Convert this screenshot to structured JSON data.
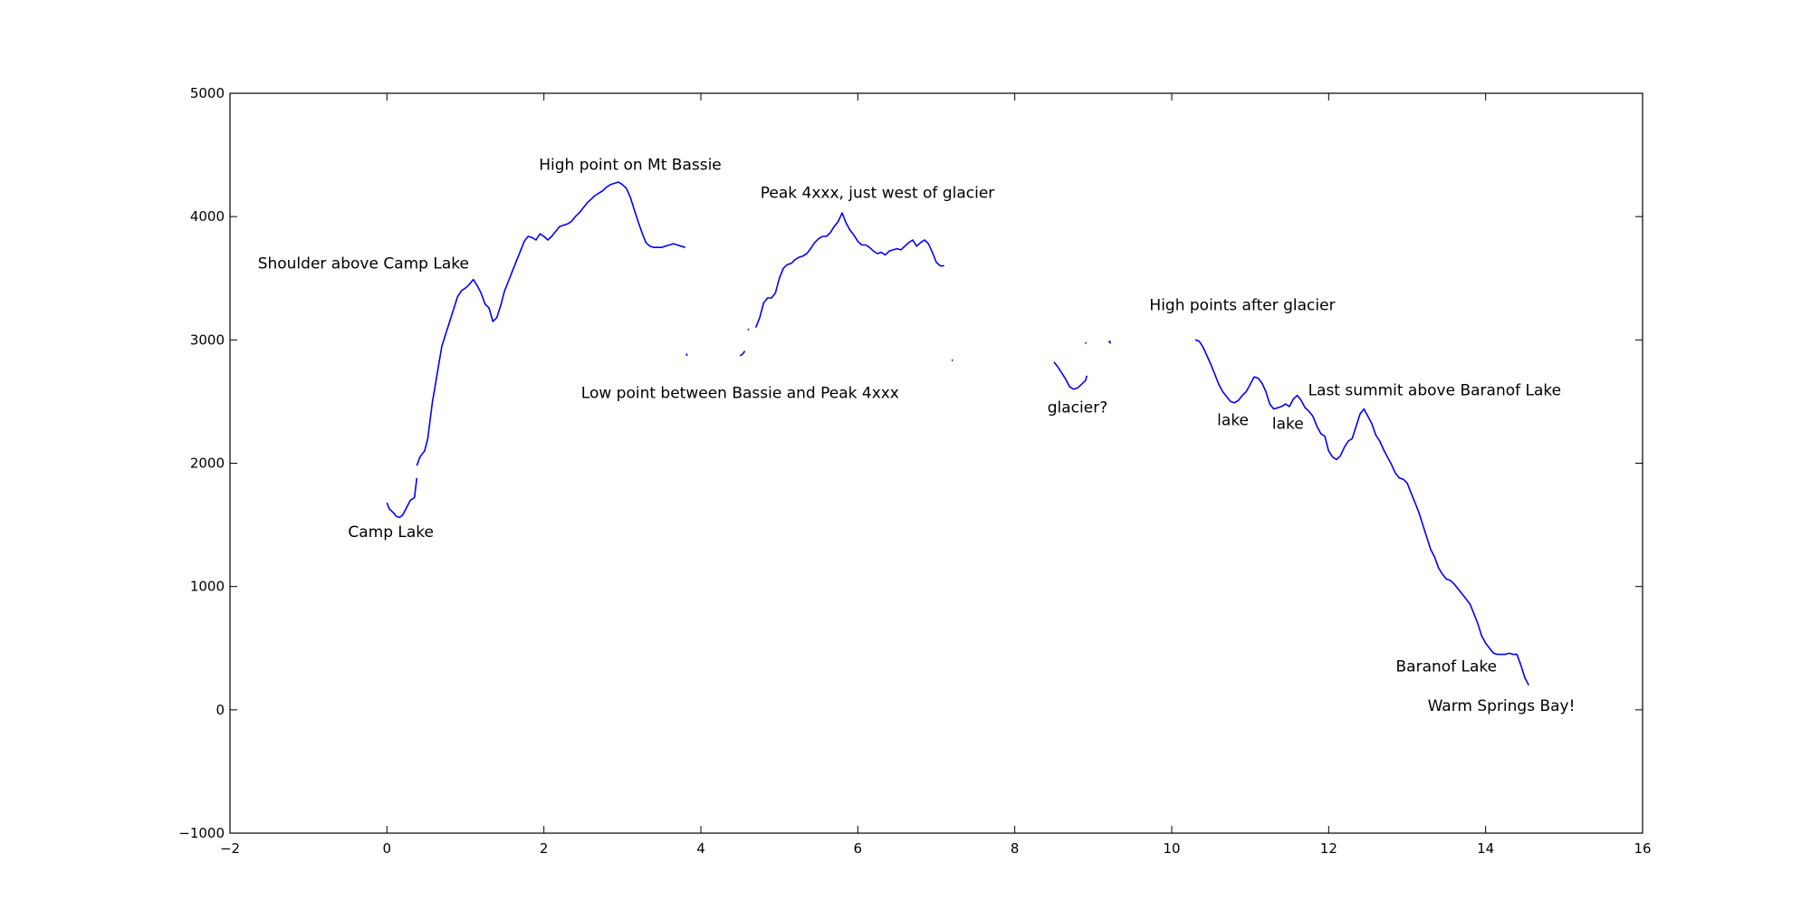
{
  "chart_data": {
    "type": "line",
    "title": "",
    "xlabel": "",
    "ylabel": "",
    "xlim": [
      -2,
      16
    ],
    "ylim": [
      -1000,
      5000
    ],
    "xticks": [
      -2,
      0,
      2,
      4,
      6,
      8,
      10,
      12,
      14,
      16
    ],
    "yticks": [
      -1000,
      0,
      1000,
      2000,
      3000,
      4000,
      5000
    ],
    "xtick_labels": [
      "−2",
      "0",
      "2",
      "4",
      "6",
      "8",
      "10",
      "12",
      "14",
      "16"
    ],
    "ytick_labels": [
      "−1000",
      "0",
      "1000",
      "2000",
      "3000",
      "4000",
      "5000"
    ],
    "grid": false,
    "line_color": "#0000ff",
    "segments": [
      {
        "x": [
          0.0,
          0.03,
          0.08,
          0.12,
          0.16,
          0.2,
          0.25,
          0.3,
          0.35,
          0.38
        ],
        "y": [
          1680,
          1630,
          1600,
          1570,
          1560,
          1580,
          1640,
          1700,
          1720,
          1880
        ]
      },
      {
        "x": [
          0.38,
          0.42,
          0.48,
          0.52,
          0.55,
          0.58,
          0.62,
          0.66,
          0.7,
          0.75,
          0.8,
          0.85,
          0.9,
          0.95,
          1.0,
          1.05,
          1.1,
          1.15,
          1.2,
          1.25,
          1.3,
          1.35,
          1.4,
          1.45,
          1.5,
          1.55,
          1.6,
          1.65,
          1.7,
          1.75,
          1.8,
          1.85,
          1.9,
          1.95,
          2.0,
          2.05,
          2.1,
          2.15,
          2.2,
          2.25,
          2.3,
          2.35,
          2.4,
          2.45,
          2.5,
          2.55,
          2.6,
          2.65,
          2.7,
          2.75,
          2.8,
          2.85,
          2.9,
          2.95,
          3.0,
          3.05,
          3.1,
          3.15,
          3.2,
          3.25,
          3.3,
          3.35,
          3.4,
          3.45,
          3.5,
          3.55,
          3.6,
          3.65,
          3.7,
          3.75,
          3.8
        ],
        "y": [
          1980,
          2050,
          2100,
          2200,
          2350,
          2500,
          2650,
          2800,
          2950,
          3050,
          3150,
          3250,
          3350,
          3400,
          3420,
          3450,
          3490,
          3440,
          3380,
          3290,
          3260,
          3150,
          3180,
          3280,
          3400,
          3480,
          3560,
          3640,
          3720,
          3800,
          3840,
          3830,
          3810,
          3860,
          3840,
          3810,
          3840,
          3880,
          3920,
          3930,
          3940,
          3960,
          4000,
          4030,
          4070,
          4110,
          4140,
          4170,
          4190,
          4210,
          4240,
          4260,
          4270,
          4280,
          4260,
          4230,
          4160,
          4060,
          3960,
          3870,
          3790,
          3760,
          3750,
          3750,
          3750,
          3760,
          3770,
          3780,
          3770,
          3760,
          3750
        ]
      },
      {
        "x": [
          3.82,
          3.82
        ],
        "y": [
          2890,
          2870
        ]
      },
      {
        "x": [
          4.5,
          4.54,
          4.56
        ],
        "y": [
          2870,
          2890,
          2910
        ]
      },
      {
        "x": [
          4.6,
          4.61
        ],
        "y": [
          3090,
          3080
        ]
      },
      {
        "x": [
          4.7,
          4.75,
          4.8,
          4.85,
          4.9,
          4.95,
          5.0,
          5.05,
          5.1,
          5.15,
          5.2,
          5.25,
          5.3,
          5.35,
          5.4,
          5.45,
          5.5,
          5.55,
          5.6,
          5.65,
          5.7,
          5.75,
          5.8,
          5.85,
          5.9,
          5.95,
          6.0,
          6.05,
          6.1,
          6.15,
          6.2,
          6.25,
          6.3,
          6.35,
          6.4,
          6.45,
          6.5,
          6.55,
          6.6,
          6.65,
          6.7,
          6.75,
          6.8,
          6.85,
          6.9,
          6.95,
          7.0,
          7.05,
          7.1
        ],
        "y": [
          3100,
          3180,
          3300,
          3340,
          3340,
          3380,
          3500,
          3580,
          3610,
          3620,
          3650,
          3670,
          3680,
          3700,
          3740,
          3790,
          3820,
          3840,
          3840,
          3870,
          3920,
          3960,
          4030,
          3950,
          3890,
          3850,
          3800,
          3770,
          3770,
          3750,
          3720,
          3700,
          3710,
          3690,
          3720,
          3730,
          3740,
          3730,
          3760,
          3790,
          3810,
          3760,
          3790,
          3810,
          3780,
          3710,
          3630,
          3600,
          3600
        ]
      },
      {
        "x": [
          7.2,
          7.21
        ],
        "y": [
          2840,
          2830
        ]
      },
      {
        "x": [
          8.5,
          8.55,
          8.6,
          8.65,
          8.7,
          8.75,
          8.8,
          8.85,
          8.9,
          8.92
        ],
        "y": [
          2820,
          2780,
          2730,
          2680,
          2620,
          2600,
          2610,
          2640,
          2670,
          2710
        ]
      },
      {
        "x": [
          8.9,
          8.91
        ],
        "y": [
          2980,
          2970
        ]
      },
      {
        "x": [
          9.2,
          9.21,
          9.22
        ],
        "y": [
          2980,
          2990,
          2970
        ]
      },
      {
        "x": [
          10.3,
          10.35,
          10.4,
          10.45,
          10.5,
          10.55,
          10.6,
          10.65,
          10.7,
          10.75,
          10.8,
          10.85,
          10.9,
          10.95,
          11.0,
          11.05,
          11.1,
          11.15,
          11.2,
          11.25,
          11.3,
          11.35,
          11.4,
          11.45,
          11.5,
          11.55,
          11.6,
          11.65,
          11.7,
          11.75,
          11.8,
          11.85,
          11.9,
          11.95,
          12.0,
          12.05,
          12.1,
          12.15,
          12.2,
          12.25,
          12.3,
          12.35,
          12.4,
          12.45,
          12.5,
          12.55,
          12.6,
          12.65,
          12.7,
          12.75,
          12.8,
          12.85,
          12.9,
          12.95,
          13.0,
          13.05,
          13.1,
          13.15,
          13.2,
          13.25,
          13.3,
          13.35,
          13.4,
          13.45,
          13.5,
          13.55,
          13.6,
          13.65,
          13.7,
          13.75,
          13.8,
          13.85,
          13.9,
          13.95,
          14.0,
          14.05,
          14.1,
          14.15,
          14.2,
          14.25,
          14.3,
          14.35,
          14.4,
          14.45,
          14.5,
          14.55
        ],
        "y": [
          3000,
          2990,
          2940,
          2870,
          2800,
          2720,
          2640,
          2580,
          2540,
          2500,
          2490,
          2510,
          2550,
          2580,
          2640,
          2700,
          2690,
          2650,
          2580,
          2480,
          2440,
          2450,
          2460,
          2480,
          2460,
          2520,
          2550,
          2510,
          2450,
          2420,
          2380,
          2300,
          2240,
          2220,
          2100,
          2050,
          2030,
          2060,
          2130,
          2180,
          2200,
          2300,
          2400,
          2440,
          2380,
          2320,
          2230,
          2180,
          2110,
          2050,
          1990,
          1920,
          1880,
          1870,
          1840,
          1760,
          1680,
          1600,
          1500,
          1400,
          1300,
          1240,
          1150,
          1100,
          1060,
          1050,
          1020,
          980,
          940,
          900,
          860,
          780,
          700,
          600,
          540,
          500,
          460,
          450,
          450,
          450,
          460,
          450,
          450,
          360,
          260,
          200
        ]
      }
    ],
    "annotations": [
      {
        "text": "Camp Lake",
        "x": 0.05,
        "y": 1400
      },
      {
        "text": "Shoulder above Camp Lake",
        "x": -0.3,
        "y": 3580
      },
      {
        "text": "High point on Mt Bassie",
        "x": 3.1,
        "y": 4380
      },
      {
        "text": "Peak 4xxx, just west of glacier",
        "x": 6.25,
        "y": 4150
      },
      {
        "text": "Low point between Bassie and Peak 4xxx",
        "x": 4.5,
        "y": 2530
      },
      {
        "text": "glacier?",
        "x": 8.8,
        "y": 2410
      },
      {
        "text": "High points after glacier",
        "x": 10.9,
        "y": 3240
      },
      {
        "text": "lake",
        "x": 10.78,
        "y": 2310
      },
      {
        "text": "lake",
        "x": 11.48,
        "y": 2280
      },
      {
        "text": "Last summit above Baranof Lake",
        "x": 13.35,
        "y": 2550
      },
      {
        "text": "Baranof Lake",
        "x": 13.5,
        "y": 310
      },
      {
        "text": "Warm Springs Bay!",
        "x": 14.2,
        "y": -10
      }
    ]
  }
}
